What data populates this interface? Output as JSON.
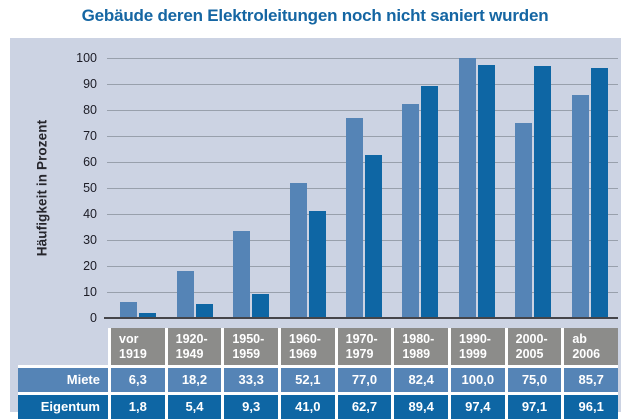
{
  "title": "Gebäude deren Elektroleitungen noch nicht saniert wurden",
  "colors": {
    "title": "#1566a3",
    "panel_bg": "#ccd3e3",
    "gridline": "#98a0ac",
    "axis_line": "#45454a",
    "tick_text": "#1c1c26",
    "header_gray": "#8c8c8a",
    "miete_blue": "#5584b6",
    "eigentum_blue": "#0e66a4"
  },
  "chart_data": {
    "type": "bar",
    "title": "Gebäude deren Elektroleitungen noch nicht saniert wurden",
    "xlabel": "",
    "ylabel": "Häufigkeit in Prozent",
    "ylim": [
      0,
      100
    ],
    "yticks": [
      0,
      10,
      20,
      30,
      40,
      50,
      60,
      70,
      80,
      90,
      100
    ],
    "grid": true,
    "legend_position": "table-below",
    "categories": [
      "vor 1919",
      "1920-1949",
      "1950-1959",
      "1960-1969",
      "1970-1979",
      "1980-1989",
      "1990-1999",
      "2000-2005",
      "ab 2006"
    ],
    "series": [
      {
        "name": "Miete",
        "color": "#5584b6",
        "values": [
          6.3,
          18.2,
          33.3,
          52.1,
          77.0,
          82.4,
          100.0,
          75.0,
          85.7
        ]
      },
      {
        "name": "Eigentum",
        "color": "#0e66a4",
        "values": [
          1.8,
          5.4,
          9.3,
          41.0,
          62.7,
          89.4,
          97.4,
          97.1,
          96.1
        ]
      }
    ]
  },
  "table": {
    "col_headers": [
      "vor\n1919",
      "1920-\n1949",
      "1950-\n1959",
      "1960-\n1969",
      "1970-\n1979",
      "1980-\n1989",
      "1990-\n1999",
      "2000-\n2005",
      "ab\n2006"
    ],
    "rows": [
      {
        "label": "Miete",
        "values": [
          "6,3",
          "18,2",
          "33,3",
          "52,1",
          "77,0",
          "82,4",
          "100,0",
          "75,0",
          "85,7"
        ]
      },
      {
        "label": "Eigentum",
        "values": [
          "1,8",
          "5,4",
          "9,3",
          "41,0",
          "62,7",
          "89,4",
          "97,4",
          "97,1",
          "96,1"
        ]
      }
    ]
  }
}
